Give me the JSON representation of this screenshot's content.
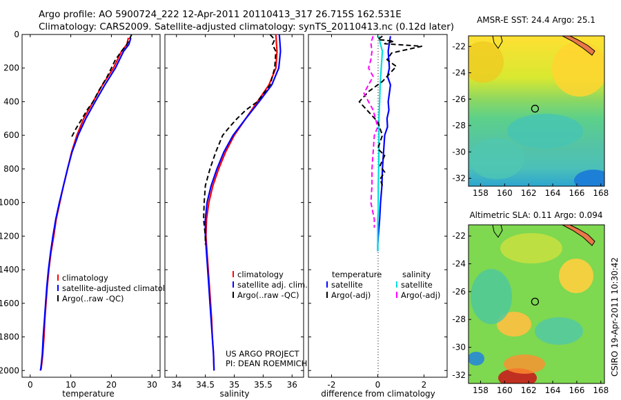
{
  "header": {
    "line1": "Argo profile: AO 5900724_222 12-Apr-2011 20110413_317 26.715S 162.531E",
    "line2": "Climatology: CARS2009. Satellite-adjusted climatology: synTS_20110413.nc (0.12d later)"
  },
  "credit": {
    "project": "US ARGO PROJECT",
    "pi": "PI: DEAN ROEMMICH",
    "stamp": "CSIRO 19-Apr-2011 10:30:42"
  },
  "colors": {
    "climatology": "#ff0000",
    "satellite": "#0000ff",
    "argo": "#000000",
    "sal_satellite": "#00dddd",
    "sal_argo": "#ff00ff"
  },
  "chart_data": [
    {
      "type": "line",
      "id": "temperature",
      "xlabel": "temperature",
      "ylabel": "",
      "xlim": [
        -2,
        32
      ],
      "ylim": [
        2040,
        0
      ],
      "xticks": [
        0,
        10,
        20,
        30
      ],
      "yticks": [
        0,
        200,
        400,
        600,
        800,
        1000,
        1200,
        1400,
        1600,
        1800,
        2000
      ],
      "legend": [
        "climatology",
        "satellite-adjusted climatology",
        "Argo(..raw -QC)"
      ],
      "series": [
        {
          "name": "climatology",
          "color": "#ff0000",
          "style": "solid",
          "x": [
            24.2,
            23.8,
            22.5,
            20.5,
            17.8,
            15.5,
            13.2,
            11.5,
            10.2,
            9.2,
            8.2,
            7.3,
            6.4,
            5.8,
            5.1,
            4.6,
            4.2,
            3.9,
            3.6,
            3.4,
            3.1,
            2.9,
            2.7,
            2.5
          ],
          "y": [
            20,
            60,
            100,
            200,
            300,
            400,
            500,
            600,
            700,
            800,
            900,
            1000,
            1100,
            1200,
            1300,
            1400,
            1500,
            1600,
            1700,
            1800,
            1900,
            1950,
            1990,
            2000
          ]
        },
        {
          "name": "satellite-adjusted climatology",
          "color": "#0000ff",
          "style": "solid",
          "x": [
            24.8,
            24.3,
            23.0,
            21.0,
            18.4,
            16.0,
            13.7,
            11.8,
            10.3,
            9.2,
            8.2,
            7.2,
            6.3,
            5.6,
            5.0,
            4.5,
            4.1,
            3.8,
            3.5,
            3.2,
            3.0,
            2.8,
            2.6,
            2.5
          ],
          "y": [
            20,
            60,
            100,
            200,
            300,
            400,
            500,
            600,
            700,
            800,
            900,
            1000,
            1100,
            1200,
            1300,
            1400,
            1500,
            1600,
            1700,
            1800,
            1900,
            1950,
            1990,
            2000
          ]
        },
        {
          "name": "Argo(..raw -QC)",
          "color": "#000000",
          "style": "dash",
          "x": [
            25.0,
            24.6,
            23.8,
            22.5,
            21.0,
            19.0,
            17.0,
            15.5,
            14.0,
            12.8,
            11.3,
            10.0
          ],
          "y": [
            0,
            20,
            60,
            100,
            150,
            250,
            330,
            400,
            450,
            500,
            560,
            620
          ]
        }
      ]
    },
    {
      "type": "line",
      "id": "salinity",
      "xlabel": "salinity",
      "xlim": [
        33.8,
        36.2
      ],
      "ylim": [
        2040,
        0
      ],
      "xticks": [
        34,
        34.5,
        35,
        35.5,
        36
      ],
      "legend": [
        "climatology",
        "satellite adj. clim.",
        "Argo(..raw -QC)"
      ],
      "series": [
        {
          "name": "climatology",
          "color": "#ff0000",
          "style": "solid",
          "x": [
            35.72,
            35.73,
            35.74,
            35.72,
            35.6,
            35.4,
            35.2,
            35.0,
            34.85,
            34.73,
            34.63,
            34.56,
            34.52,
            34.51,
            34.53,
            34.55,
            34.57,
            34.59,
            34.61,
            34.62,
            34.64,
            34.65
          ],
          "y": [
            0,
            50,
            100,
            200,
            300,
            400,
            500,
            600,
            700,
            800,
            900,
            1000,
            1100,
            1200,
            1300,
            1400,
            1500,
            1600,
            1700,
            1800,
            1900,
            2000
          ]
        },
        {
          "name": "satellite adj. clim.",
          "color": "#0000ff",
          "style": "solid",
          "x": [
            35.78,
            35.79,
            35.8,
            35.77,
            35.65,
            35.43,
            35.2,
            34.98,
            34.82,
            34.7,
            34.6,
            34.53,
            34.5,
            34.5,
            34.52,
            34.54,
            34.56,
            34.58,
            34.6,
            34.62,
            34.64,
            34.65
          ],
          "y": [
            0,
            50,
            100,
            200,
            300,
            400,
            500,
            600,
            700,
            800,
            900,
            1000,
            1100,
            1200,
            1300,
            1400,
            1500,
            1600,
            1700,
            1800,
            1900,
            2000
          ]
        },
        {
          "name": "Argo(..raw -QC)",
          "color": "#000000",
          "style": "dash",
          "x": [
            35.62,
            35.7,
            35.66,
            35.72,
            35.7,
            35.62,
            35.4,
            35.2,
            35.05,
            34.92,
            34.8,
            34.68,
            34.58,
            34.5,
            34.48,
            34.47,
            34.5,
            34.5
          ],
          "y": [
            0,
            30,
            60,
            100,
            200,
            300,
            400,
            450,
            500,
            550,
            600,
            700,
            800,
            900,
            1000,
            1100,
            1200,
            1250
          ]
        }
      ]
    },
    {
      "type": "line",
      "id": "difference",
      "xlabel": "difference from climatology",
      "xlim": [
        -3,
        3
      ],
      "ylim": [
        2040,
        0
      ],
      "xticks": [
        -2,
        0,
        2
      ],
      "legend": [
        "temperature",
        "satellite",
        "Argo(-adj)",
        "salinity",
        "satellite",
        "Argo(-adj)"
      ],
      "series": [
        {
          "name": "satellite",
          "color": "#0000ff",
          "style": "solid",
          "x": [
            0.55,
            0.5,
            0.45,
            0.5,
            0.42,
            0.55,
            0.5,
            0.45,
            0.48,
            0.4,
            0.42,
            0.3,
            0.25,
            0.2,
            0.18,
            0.12,
            0.08,
            0.05,
            0.02,
            0.0,
            0.0
          ],
          "y": [
            10,
            50,
            100,
            200,
            250,
            300,
            350,
            400,
            450,
            500,
            550,
            600,
            700,
            800,
            900,
            1000,
            1100,
            1150,
            1200,
            1250,
            1290
          ]
        },
        {
          "name": "satellite",
          "color": "#00dddd",
          "style": "solid",
          "x": [
            0.05,
            0.1,
            0.2,
            0.15,
            0.1,
            0.08,
            0.05,
            0.05,
            0.05,
            0.04,
            0.02,
            0.02,
            0.02,
            0.0,
            0.0,
            0.0,
            0.0
          ],
          "y": [
            10,
            50,
            100,
            200,
            300,
            400,
            500,
            600,
            700,
            800,
            900,
            1000,
            1050,
            1100,
            1150,
            1200,
            1290
          ]
        },
        {
          "name": "Argo(-adj)",
          "color": "#000000",
          "style": "dash",
          "x": [
            0.2,
            0.0,
            0.7,
            0.3,
            1.9,
            0.6,
            0.4,
            0.8,
            0.2,
            -0.4,
            -0.8,
            -0.4,
            0.0,
            0.2,
            0.0,
            0.3,
            0.1,
            0.3,
            0.1,
            0.2
          ],
          "y": [
            10,
            30,
            40,
            55,
            70,
            110,
            150,
            190,
            280,
            340,
            400,
            460,
            520,
            600,
            680,
            720,
            780,
            820,
            860,
            900
          ]
        },
        {
          "name": "Argo(-adj)",
          "color": "#ff00ff",
          "style": "dash",
          "x": [
            -0.2,
            -0.3,
            -0.25,
            -0.3,
            -0.4,
            -0.2,
            -0.6,
            -0.2,
            -0.1,
            0.0,
            -0.15,
            -0.2,
            -0.25,
            -0.25,
            -0.3,
            -0.15,
            -0.15
          ],
          "y": [
            10,
            50,
            100,
            150,
            200,
            250,
            350,
            450,
            500,
            550,
            600,
            700,
            800,
            900,
            1000,
            1100,
            1150
          ]
        }
      ]
    },
    {
      "type": "heatmap",
      "id": "sst",
      "title": "AMSR-E SST: 24.4 Argo: 25.1",
      "xlim": [
        157,
        168.3
      ],
      "ylim": [
        -32.6,
        -21.2
      ],
      "xticks": [
        158,
        160,
        162,
        164,
        166,
        168
      ],
      "yticks": [
        -22,
        -24,
        -26,
        -28,
        -30,
        -32
      ],
      "marker": {
        "lon": 162.53,
        "lat": -26.72
      }
    },
    {
      "type": "heatmap",
      "id": "sla",
      "title": "Altimetric SLA: 0.11 Argo: 0.094",
      "xlim": [
        157,
        168.3
      ],
      "ylim": [
        -32.6,
        -21.2
      ],
      "xticks": [
        158,
        160,
        162,
        164,
        166,
        168
      ],
      "yticks": [
        -22,
        -24,
        -26,
        -28,
        -30,
        -32
      ],
      "marker": {
        "lon": 162.53,
        "lat": -26.72
      }
    }
  ]
}
